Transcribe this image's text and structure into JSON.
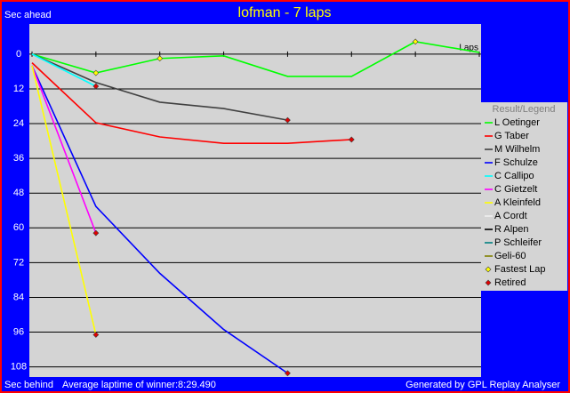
{
  "chart_data": {
    "type": "line",
    "title": "lofman - 7 laps",
    "y_label_top": "Sec ahead",
    "y_label_bottom": "Sec behind",
    "x_label": "Laps",
    "footer_note": "Average laptime of winner:8:29.490",
    "credit": "Generated by GPL Replay Analyser",
    "legend_title": "Result/Legend",
    "y_inverted": true,
    "ylim": [
      -10.4,
      111.5
    ],
    "yticks": [
      0,
      12,
      24,
      36,
      48,
      60,
      72,
      84,
      96,
      108
    ],
    "grid": true,
    "xlim": [
      0,
      7
    ],
    "xticks": [
      0,
      1,
      2,
      3,
      4,
      5,
      6,
      7
    ],
    "x": [
      0,
      1,
      2,
      3,
      4,
      5,
      6,
      7
    ],
    "fastest_lap": {
      "label": "Fastest Lap",
      "color": "#ffff00"
    },
    "retired": {
      "label": "Retired",
      "color": "#e00000"
    },
    "series": [
      {
        "name": "L Oetinger",
        "color": "#00ff00",
        "values": [
          0,
          6.5,
          1.5,
          0.6,
          7.7,
          7.7,
          -4.3,
          -0.6
        ],
        "fastest_lap_x": [
          1,
          2,
          6
        ],
        "retired": false
      },
      {
        "name": "G Taber",
        "color": "#ff0000",
        "values": [
          3,
          23.7,
          28.6,
          30.8,
          30.8,
          29.5,
          null,
          null
        ],
        "retired": true
      },
      {
        "name": "M Wilhelm",
        "color": "#404040",
        "values": [
          0,
          9.8,
          16.6,
          18.8,
          22.8,
          null,
          null,
          null
        ],
        "retired": true
      },
      {
        "name": "F Schulze",
        "color": "#0000ff",
        "values": [
          4,
          52.6,
          75.7,
          95.1,
          110.2,
          null,
          null,
          null
        ],
        "retired": true
      },
      {
        "name": "C Callipo",
        "color": "#00ffff",
        "values": [
          0,
          11.1,
          null,
          null,
          null,
          null,
          null,
          null
        ],
        "retired": true
      },
      {
        "name": "C Gietzelt",
        "color": "#ff00ff",
        "values": [
          4,
          61.8,
          null,
          null,
          null,
          null,
          null,
          null
        ],
        "retired": true
      },
      {
        "name": "A Kleinfeld",
        "color": "#ffff00",
        "values": [
          4,
          96.9,
          null,
          null,
          null,
          null,
          null,
          null
        ],
        "retired": true
      },
      {
        "name": "A Cordt",
        "color": "#f0f0f0",
        "values": [
          null,
          null,
          null,
          null,
          null,
          null,
          null,
          null
        ],
        "retired": false
      },
      {
        "name": "R Alpen",
        "color": "#000000",
        "values": [
          null,
          null,
          null,
          null,
          null,
          null,
          null,
          null
        ],
        "retired": false
      },
      {
        "name": "P Schleifer",
        "color": "#008080",
        "values": [
          null,
          null,
          null,
          null,
          null,
          null,
          null,
          null
        ],
        "retired": false
      },
      {
        "name": "Geli-60",
        "color": "#808000",
        "values": [
          null,
          null,
          null,
          null,
          null,
          null,
          null,
          null
        ],
        "retired": false
      }
    ]
  }
}
